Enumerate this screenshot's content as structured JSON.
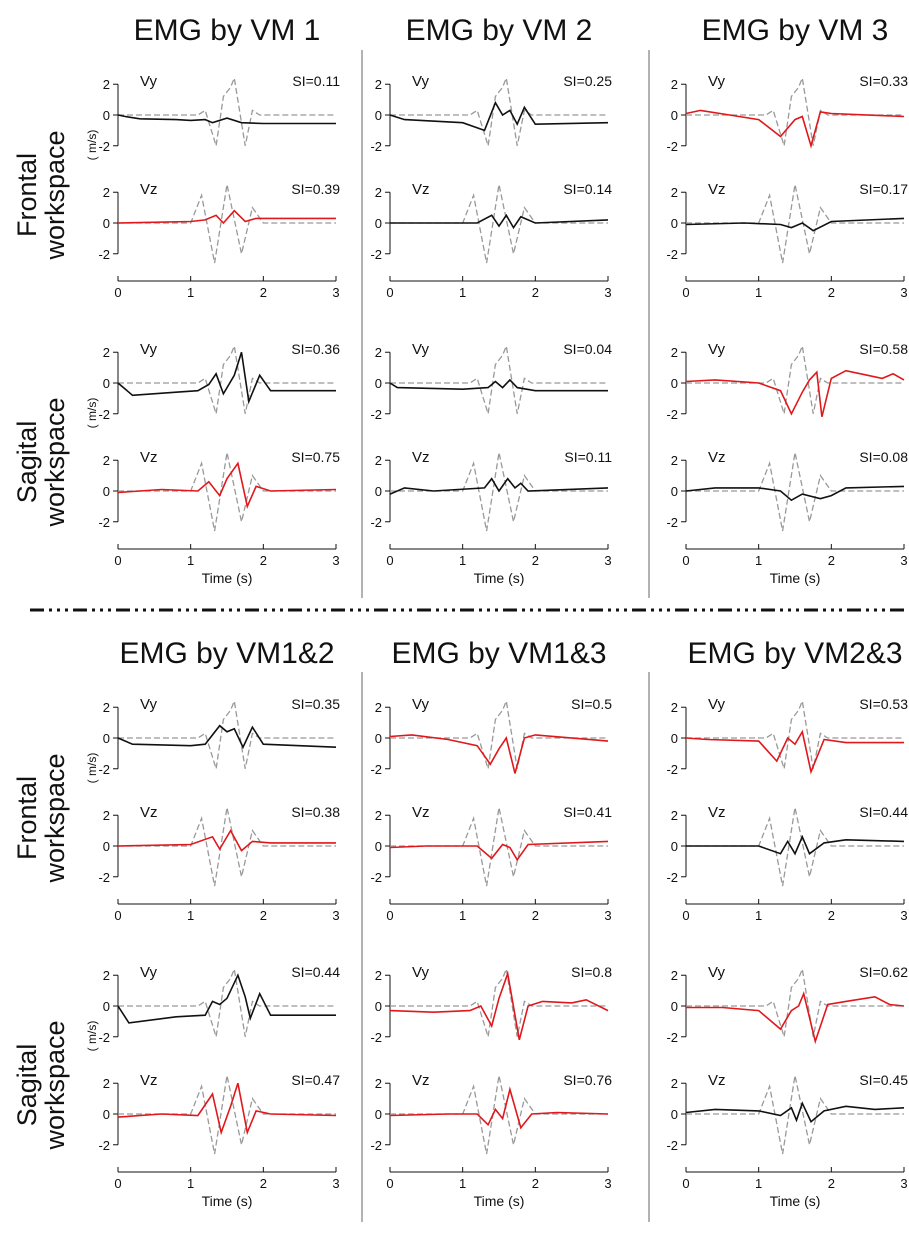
{
  "figure": {
    "column_titles_top": [
      "EMG by VM 1",
      "EMG by VM 2",
      "EMG by VM 3"
    ],
    "column_titles_bottom": [
      "EMG by VM1&2",
      "EMG by VM1&3",
      "EMG by VM2&3"
    ],
    "row_titles": [
      [
        "Frontal",
        "workspace"
      ],
      [
        "Sagital",
        "workspace"
      ],
      [
        "Frontal",
        "workspace"
      ],
      [
        "Sagital",
        "workspace"
      ]
    ],
    "units_label": "( m/s)",
    "xlabel": "Time (s)",
    "component_labels": [
      "Vy",
      "Vz"
    ],
    "colors": {
      "reference": "#999999",
      "highlight": "#e0181b",
      "normal": "#111111"
    }
  },
  "chart_data": {
    "type": "line",
    "xlim": [
      0,
      3
    ],
    "ylim": [
      -2.6,
      2.6
    ],
    "xticks": [
      0,
      1,
      2,
      3
    ],
    "yticks": [
      2,
      0,
      -2
    ],
    "legend": "none",
    "panels": [
      {
        "group": 0,
        "col": 0,
        "row": "frontal",
        "title": "EMG by VM 1",
        "vy": {
          "si": "SI=0.11",
          "highlight": false
        },
        "vz": {
          "si": "SI=0.39",
          "highlight": true
        }
      },
      {
        "group": 0,
        "col": 1,
        "row": "frontal",
        "title": "EMG by VM 2",
        "vy": {
          "si": "SI=0.25",
          "highlight": false
        },
        "vz": {
          "si": "SI=0.14",
          "highlight": false
        }
      },
      {
        "group": 0,
        "col": 2,
        "row": "frontal",
        "title": "EMG by VM 3",
        "vy": {
          "si": "SI=0.33",
          "highlight": true
        },
        "vz": {
          "si": "SI=0.17",
          "highlight": false
        }
      },
      {
        "group": 0,
        "col": 0,
        "row": "sagital",
        "title": "EMG by VM 1",
        "vy": {
          "si": "SI=0.36",
          "highlight": false
        },
        "vz": {
          "si": "SI=0.75",
          "highlight": true
        }
      },
      {
        "group": 0,
        "col": 1,
        "row": "sagital",
        "title": "EMG by VM 2",
        "vy": {
          "si": "SI=0.04",
          "highlight": false
        },
        "vz": {
          "si": "SI=0.11",
          "highlight": false
        }
      },
      {
        "group": 0,
        "col": 2,
        "row": "sagital",
        "title": "EMG by VM 3",
        "vy": {
          "si": "SI=0.58",
          "highlight": true
        },
        "vz": {
          "si": "SI=0.08",
          "highlight": false
        }
      },
      {
        "group": 1,
        "col": 0,
        "row": "frontal",
        "title": "EMG by VM1&2",
        "vy": {
          "si": "SI=0.35",
          "highlight": false
        },
        "vz": {
          "si": "SI=0.38",
          "highlight": true
        }
      },
      {
        "group": 1,
        "col": 1,
        "row": "frontal",
        "title": "EMG by VM1&3",
        "vy": {
          "si": "SI=0.5",
          "highlight": true
        },
        "vz": {
          "si": "SI=0.41",
          "highlight": true
        }
      },
      {
        "group": 1,
        "col": 2,
        "row": "frontal",
        "title": "EMG by VM2&3",
        "vy": {
          "si": "SI=0.53",
          "highlight": true
        },
        "vz": {
          "si": "SI=0.44",
          "highlight": false
        }
      },
      {
        "group": 1,
        "col": 0,
        "row": "sagital",
        "title": "EMG by VM1&2",
        "vy": {
          "si": "SI=0.44",
          "highlight": false
        },
        "vz": {
          "si": "SI=0.47",
          "highlight": true
        }
      },
      {
        "group": 1,
        "col": 1,
        "row": "sagital",
        "title": "EMG by VM1&3",
        "vy": {
          "si": "SI=0.8",
          "highlight": true
        },
        "vz": {
          "si": "SI=0.76",
          "highlight": true
        }
      },
      {
        "group": 1,
        "col": 2,
        "row": "sagital",
        "title": "EMG by VM2&3",
        "vy": {
          "si": "SI=0.62",
          "highlight": true
        },
        "vz": {
          "si": "SI=0.45",
          "highlight": false
        }
      }
    ],
    "reference_curves": {
      "vy": [
        [
          0.0,
          0.0
        ],
        [
          1.1,
          0.0
        ],
        [
          1.2,
          0.3
        ],
        [
          1.35,
          -2.0
        ],
        [
          1.45,
          1.2
        ],
        [
          1.55,
          1.8
        ],
        [
          1.6,
          2.4
        ],
        [
          1.75,
          -2.0
        ],
        [
          1.85,
          0.3
        ],
        [
          1.95,
          0.0
        ],
        [
          3.0,
          0.0
        ]
      ],
      "vz": [
        [
          0.0,
          0.0
        ],
        [
          1.0,
          0.0
        ],
        [
          1.15,
          1.8
        ],
        [
          1.33,
          -2.6
        ],
        [
          1.5,
          2.5
        ],
        [
          1.7,
          -2.0
        ],
        [
          1.85,
          1.0
        ],
        [
          2.0,
          0.0
        ],
        [
          3.0,
          0.0
        ]
      ]
    },
    "response_curves": {
      "0-0-vy": [
        [
          0,
          0
        ],
        [
          0.1,
          -0.1
        ],
        [
          0.3,
          -0.25
        ],
        [
          0.8,
          -0.3
        ],
        [
          1.0,
          -0.35
        ],
        [
          1.2,
          -0.3
        ],
        [
          1.3,
          -0.5
        ],
        [
          1.5,
          -0.2
        ],
        [
          1.7,
          -0.5
        ],
        [
          2.0,
          -0.55
        ],
        [
          3,
          -0.55
        ]
      ],
      "0-0-vz": [
        [
          0,
          0
        ],
        [
          1.0,
          0.1
        ],
        [
          1.2,
          0.2
        ],
        [
          1.35,
          0.5
        ],
        [
          1.45,
          0.0
        ],
        [
          1.6,
          0.8
        ],
        [
          1.75,
          0.1
        ],
        [
          1.9,
          0.3
        ],
        [
          3,
          0.3
        ]
      ],
      "0-1-vy": [
        [
          0,
          0
        ],
        [
          0.2,
          -0.3
        ],
        [
          1.0,
          -0.5
        ],
        [
          1.3,
          -1.0
        ],
        [
          1.45,
          0.8
        ],
        [
          1.55,
          0.0
        ],
        [
          1.65,
          0.3
        ],
        [
          1.75,
          -0.6
        ],
        [
          1.85,
          0.5
        ],
        [
          2.0,
          -0.6
        ],
        [
          3,
          -0.5
        ]
      ],
      "0-1-vz": [
        [
          0,
          0
        ],
        [
          1.2,
          0.0
        ],
        [
          1.4,
          0.5
        ],
        [
          1.5,
          -0.2
        ],
        [
          1.6,
          0.5
        ],
        [
          1.7,
          -0.3
        ],
        [
          1.8,
          0.4
        ],
        [
          2.0,
          0.0
        ],
        [
          3,
          0.2
        ]
      ],
      "0-2-vy": [
        [
          0,
          0.1
        ],
        [
          0.2,
          0.3
        ],
        [
          0.6,
          0.0
        ],
        [
          1.0,
          -0.3
        ],
        [
          1.3,
          -1.4
        ],
        [
          1.5,
          -0.3
        ],
        [
          1.6,
          -0.1
        ],
        [
          1.72,
          -2.0
        ],
        [
          1.85,
          0.2
        ],
        [
          2.0,
          0.1
        ],
        [
          3,
          -0.1
        ]
      ],
      "0-2-vz": [
        [
          0,
          -0.1
        ],
        [
          0.8,
          0.0
        ],
        [
          1.3,
          -0.1
        ],
        [
          1.45,
          -0.3
        ],
        [
          1.6,
          0.0
        ],
        [
          1.75,
          -0.5
        ],
        [
          2.0,
          0.1
        ],
        [
          3,
          0.3
        ]
      ],
      "1-0-vy": [
        [
          0,
          0
        ],
        [
          0.2,
          -0.8
        ],
        [
          0.8,
          -0.6
        ],
        [
          1.1,
          -0.5
        ],
        [
          1.25,
          -0.1
        ],
        [
          1.35,
          0.6
        ],
        [
          1.45,
          -0.7
        ],
        [
          1.6,
          0.5
        ],
        [
          1.7,
          2.0
        ],
        [
          1.8,
          -1.2
        ],
        [
          1.95,
          0.5
        ],
        [
          2.1,
          -0.5
        ],
        [
          3,
          -0.5
        ]
      ],
      "1-0-vz": [
        [
          0,
          -0.1
        ],
        [
          0.6,
          0.1
        ],
        [
          1.1,
          0.0
        ],
        [
          1.25,
          0.6
        ],
        [
          1.4,
          -0.3
        ],
        [
          1.5,
          0.8
        ],
        [
          1.65,
          1.8
        ],
        [
          1.78,
          -1.0
        ],
        [
          1.9,
          0.3
        ],
        [
          2.1,
          0.0
        ],
        [
          3,
          0.1
        ]
      ],
      "1-1-vy": [
        [
          0,
          0
        ],
        [
          0.1,
          -0.3
        ],
        [
          1.0,
          -0.4
        ],
        [
          1.35,
          -0.3
        ],
        [
          1.45,
          0.1
        ],
        [
          1.55,
          -0.3
        ],
        [
          1.65,
          0.2
        ],
        [
          1.75,
          -0.3
        ],
        [
          2.0,
          -0.5
        ],
        [
          3,
          -0.5
        ]
      ],
      "1-1-vz": [
        [
          0,
          -0.2
        ],
        [
          0.2,
          0.2
        ],
        [
          0.6,
          0.0
        ],
        [
          1.3,
          0.2
        ],
        [
          1.4,
          0.8
        ],
        [
          1.5,
          0.0
        ],
        [
          1.62,
          0.8
        ],
        [
          1.72,
          0.2
        ],
        [
          1.8,
          0.5
        ],
        [
          1.9,
          0.0
        ],
        [
          3,
          0.2
        ]
      ],
      "1-2-vy": [
        [
          0,
          0.1
        ],
        [
          0.4,
          0.2
        ],
        [
          1.0,
          0.0
        ],
        [
          1.3,
          -0.5
        ],
        [
          1.45,
          -2.0
        ],
        [
          1.6,
          -0.6
        ],
        [
          1.7,
          0.2
        ],
        [
          1.8,
          0.7
        ],
        [
          1.87,
          -2.2
        ],
        [
          2.0,
          0.3
        ],
        [
          2.2,
          0.8
        ],
        [
          2.5,
          0.5
        ],
        [
          2.7,
          0.3
        ],
        [
          2.85,
          0.6
        ],
        [
          3,
          0.2
        ]
      ],
      "1-2-vz": [
        [
          0,
          0
        ],
        [
          0.4,
          0.2
        ],
        [
          1.0,
          0.2
        ],
        [
          1.3,
          0.0
        ],
        [
          1.45,
          -0.6
        ],
        [
          1.6,
          -0.2
        ],
        [
          1.85,
          -0.5
        ],
        [
          2.0,
          -0.3
        ],
        [
          2.2,
          0.2
        ],
        [
          3,
          0.3
        ]
      ],
      "2-0-vy": [
        [
          0,
          0
        ],
        [
          0.2,
          -0.4
        ],
        [
          1.0,
          -0.5
        ],
        [
          1.2,
          -0.4
        ],
        [
          1.4,
          0.8
        ],
        [
          1.5,
          0.4
        ],
        [
          1.6,
          0.6
        ],
        [
          1.72,
          -0.6
        ],
        [
          1.85,
          0.7
        ],
        [
          2.0,
          -0.4
        ],
        [
          3,
          -0.6
        ]
      ],
      "2-0-vz": [
        [
          0,
          0
        ],
        [
          1.0,
          0.1
        ],
        [
          1.3,
          0.6
        ],
        [
          1.4,
          -0.2
        ],
        [
          1.55,
          1.0
        ],
        [
          1.7,
          -0.3
        ],
        [
          1.85,
          0.3
        ],
        [
          2.1,
          0.2
        ],
        [
          3,
          0.2
        ]
      ],
      "2-1-vy": [
        [
          0,
          0.1
        ],
        [
          0.3,
          0.2
        ],
        [
          0.8,
          -0.1
        ],
        [
          1.2,
          -0.5
        ],
        [
          1.38,
          -1.7
        ],
        [
          1.5,
          -0.7
        ],
        [
          1.6,
          0.0
        ],
        [
          1.72,
          -2.3
        ],
        [
          1.85,
          0.0
        ],
        [
          2.0,
          0.2
        ],
        [
          3,
          -0.2
        ]
      ],
      "2-1-vz": [
        [
          0,
          -0.1
        ],
        [
          0.5,
          0.0
        ],
        [
          1.2,
          0.0
        ],
        [
          1.4,
          -0.8
        ],
        [
          1.55,
          0.1
        ],
        [
          1.65,
          -0.1
        ],
        [
          1.75,
          -0.9
        ],
        [
          1.9,
          0.1
        ],
        [
          3,
          0.3
        ]
      ],
      "2-2-vy": [
        [
          0,
          0.0
        ],
        [
          0.3,
          -0.1
        ],
        [
          1.0,
          -0.2
        ],
        [
          1.25,
          -1.5
        ],
        [
          1.4,
          0.0
        ],
        [
          1.5,
          -0.4
        ],
        [
          1.6,
          0.4
        ],
        [
          1.72,
          -2.2
        ],
        [
          1.9,
          -0.1
        ],
        [
          2.2,
          -0.3
        ],
        [
          3,
          -0.3
        ]
      ],
      "2-2-vz": [
        [
          0,
          0.0
        ],
        [
          1.0,
          0.0
        ],
        [
          1.3,
          -0.5
        ],
        [
          1.4,
          0.3
        ],
        [
          1.5,
          -0.5
        ],
        [
          1.6,
          0.6
        ],
        [
          1.7,
          -0.5
        ],
        [
          1.9,
          0.2
        ],
        [
          2.2,
          0.4
        ],
        [
          3,
          0.3
        ]
      ],
      "3-0-vy": [
        [
          0,
          0
        ],
        [
          0.15,
          -1.1
        ],
        [
          0.8,
          -0.7
        ],
        [
          1.2,
          -0.6
        ],
        [
          1.3,
          0.3
        ],
        [
          1.4,
          0.1
        ],
        [
          1.5,
          0.5
        ],
        [
          1.65,
          2.0
        ],
        [
          1.75,
          0.6
        ],
        [
          1.82,
          -0.8
        ],
        [
          1.95,
          0.8
        ],
        [
          2.1,
          -0.6
        ],
        [
          3,
          -0.6
        ]
      ],
      "3-0-vz": [
        [
          0,
          -0.2
        ],
        [
          0.6,
          0.0
        ],
        [
          1.1,
          -0.1
        ],
        [
          1.3,
          1.3
        ],
        [
          1.42,
          -1.2
        ],
        [
          1.55,
          0.5
        ],
        [
          1.65,
          2.0
        ],
        [
          1.78,
          -1.2
        ],
        [
          1.9,
          0.2
        ],
        [
          2.1,
          0.0
        ],
        [
          3,
          -0.1
        ]
      ],
      "3-1-vy": [
        [
          0,
          -0.3
        ],
        [
          0.6,
          -0.4
        ],
        [
          1.1,
          -0.3
        ],
        [
          1.25,
          0.0
        ],
        [
          1.4,
          -1.3
        ],
        [
          1.5,
          0.5
        ],
        [
          1.62,
          2.1
        ],
        [
          1.78,
          -2.2
        ],
        [
          1.9,
          0.0
        ],
        [
          2.1,
          0.3
        ],
        [
          2.5,
          0.2
        ],
        [
          2.7,
          0.4
        ],
        [
          3,
          -0.3
        ]
      ],
      "3-1-vz": [
        [
          0,
          -0.1
        ],
        [
          0.8,
          0.0
        ],
        [
          1.2,
          0.0
        ],
        [
          1.35,
          -0.7
        ],
        [
          1.45,
          0.3
        ],
        [
          1.55,
          -0.3
        ],
        [
          1.65,
          1.6
        ],
        [
          1.8,
          -0.9
        ],
        [
          1.95,
          0.0
        ],
        [
          2.3,
          0.1
        ],
        [
          3,
          0.0
        ]
      ],
      "3-2-vy": [
        [
          0,
          -0.1
        ],
        [
          0.5,
          -0.1
        ],
        [
          1.0,
          -0.3
        ],
        [
          1.3,
          -1.5
        ],
        [
          1.45,
          -0.3
        ],
        [
          1.55,
          0.0
        ],
        [
          1.62,
          0.8
        ],
        [
          1.78,
          -2.3
        ],
        [
          1.95,
          0.1
        ],
        [
          2.2,
          0.3
        ],
        [
          2.6,
          0.6
        ],
        [
          2.8,
          0.1
        ],
        [
          3,
          0.0
        ]
      ],
      "3-2-vz": [
        [
          0,
          0.1
        ],
        [
          0.4,
          0.3
        ],
        [
          1.0,
          0.2
        ],
        [
          1.3,
          -0.1
        ],
        [
          1.45,
          0.4
        ],
        [
          1.52,
          -0.4
        ],
        [
          1.6,
          0.7
        ],
        [
          1.72,
          -0.5
        ],
        [
          1.9,
          0.2
        ],
        [
          2.2,
          0.5
        ],
        [
          2.6,
          0.3
        ],
        [
          3,
          0.4
        ]
      ]
    }
  }
}
